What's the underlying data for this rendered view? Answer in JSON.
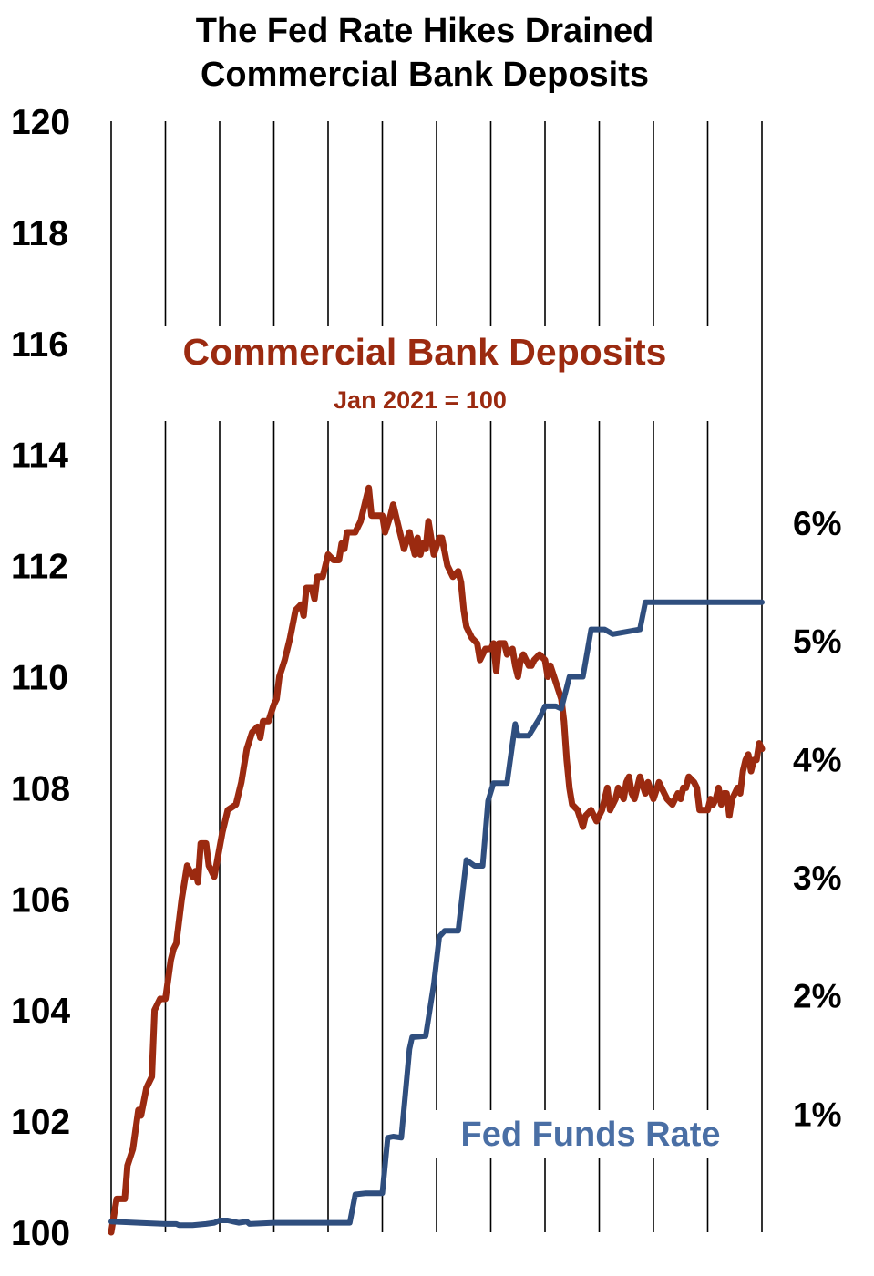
{
  "chart_data": {
    "type": "line",
    "title_lines": [
      "The Fed Rate Hikes Drained",
      "Commercial Bank Deposits"
    ],
    "y_left": {
      "ticks": [
        "100",
        "102",
        "104",
        "106",
        "108",
        "110",
        "112",
        "114",
        "116",
        "118",
        "120"
      ],
      "range": [
        100,
        120
      ]
    },
    "y_right": {
      "ticks": [
        "1%",
        "2%",
        "3%",
        "4%",
        "5%",
        "6%"
      ],
      "range_percent": [
        0,
        9.4
      ]
    },
    "x": {
      "range": [
        0,
        12
      ],
      "gridlines": 12,
      "labels": []
    },
    "grid": "vertical",
    "series": [
      {
        "name": "Commercial Bank Deposits",
        "subtitle": "Jan 2021 = 100",
        "axis": "left",
        "color": "#9b2a10",
        "points": [
          [
            0.0,
            100.0
          ],
          [
            0.1,
            100.6
          ],
          [
            0.25,
            100.6
          ],
          [
            0.3,
            101.2
          ],
          [
            0.4,
            101.5
          ],
          [
            0.5,
            102.2
          ],
          [
            0.55,
            102.1
          ],
          [
            0.65,
            102.6
          ],
          [
            0.75,
            102.8
          ],
          [
            0.8,
            104.0
          ],
          [
            0.9,
            104.2
          ],
          [
            1.0,
            104.2
          ],
          [
            1.1,
            104.9
          ],
          [
            1.15,
            105.1
          ],
          [
            1.2,
            105.2
          ],
          [
            1.3,
            106.0
          ],
          [
            1.4,
            106.6
          ],
          [
            1.5,
            106.4
          ],
          [
            1.55,
            106.5
          ],
          [
            1.6,
            106.3
          ],
          [
            1.65,
            107.0
          ],
          [
            1.75,
            107.0
          ],
          [
            1.8,
            106.6
          ],
          [
            1.9,
            106.4
          ],
          [
            2.05,
            107.2
          ],
          [
            2.15,
            107.6
          ],
          [
            2.3,
            107.7
          ],
          [
            2.4,
            108.1
          ],
          [
            2.5,
            108.7
          ],
          [
            2.6,
            109.0
          ],
          [
            2.7,
            109.1
          ],
          [
            2.75,
            108.9
          ],
          [
            2.8,
            109.2
          ],
          [
            2.9,
            109.2
          ],
          [
            3.0,
            109.5
          ],
          [
            3.05,
            109.6
          ],
          [
            3.1,
            110.0
          ],
          [
            3.2,
            110.3
          ],
          [
            3.3,
            110.7
          ],
          [
            3.4,
            111.2
          ],
          [
            3.5,
            111.3
          ],
          [
            3.55,
            111.1
          ],
          [
            3.6,
            111.6
          ],
          [
            3.7,
            111.6
          ],
          [
            3.75,
            111.4
          ],
          [
            3.8,
            111.8
          ],
          [
            3.9,
            111.8
          ],
          [
            4.0,
            112.2
          ],
          [
            4.1,
            112.1
          ],
          [
            4.2,
            112.1
          ],
          [
            4.25,
            112.4
          ],
          [
            4.3,
            112.3
          ],
          [
            4.35,
            112.6
          ],
          [
            4.5,
            112.6
          ],
          [
            4.6,
            112.8
          ],
          [
            4.7,
            113.2
          ],
          [
            4.75,
            113.4
          ],
          [
            4.8,
            112.9
          ],
          [
            5.0,
            112.9
          ],
          [
            5.05,
            112.6
          ],
          [
            5.15,
            112.9
          ],
          [
            5.2,
            113.1
          ],
          [
            5.3,
            112.7
          ],
          [
            5.4,
            112.3
          ],
          [
            5.5,
            112.6
          ],
          [
            5.6,
            112.2
          ],
          [
            5.65,
            112.5
          ],
          [
            5.7,
            112.2
          ],
          [
            5.75,
            112.4
          ],
          [
            5.8,
            112.3
          ],
          [
            5.85,
            112.8
          ],
          [
            5.95,
            112.2
          ],
          [
            6.05,
            112.5
          ],
          [
            6.1,
            112.5
          ],
          [
            6.2,
            112.0
          ],
          [
            6.3,
            111.8
          ],
          [
            6.4,
            111.9
          ],
          [
            6.45,
            111.7
          ],
          [
            6.5,
            111.2
          ],
          [
            6.55,
            110.9
          ],
          [
            6.65,
            110.7
          ],
          [
            6.75,
            110.6
          ],
          [
            6.8,
            110.3
          ],
          [
            6.9,
            110.5
          ],
          [
            6.95,
            110.5
          ],
          [
            7.0,
            110.5
          ],
          [
            7.05,
            110.6
          ],
          [
            7.1,
            110.1
          ],
          [
            7.15,
            110.6
          ],
          [
            7.25,
            110.6
          ],
          [
            7.3,
            110.4
          ],
          [
            7.4,
            110.5
          ],
          [
            7.45,
            110.2
          ],
          [
            7.5,
            110.0
          ],
          [
            7.55,
            110.3
          ],
          [
            7.6,
            110.4
          ],
          [
            7.7,
            110.2
          ],
          [
            7.75,
            110.2
          ],
          [
            7.8,
            110.3
          ],
          [
            7.9,
            110.4
          ],
          [
            8.0,
            110.3
          ],
          [
            8.05,
            110.0
          ],
          [
            8.1,
            110.2
          ],
          [
            8.2,
            109.9
          ],
          [
            8.3,
            109.6
          ],
          [
            8.35,
            109.2
          ],
          [
            8.4,
            108.5
          ],
          [
            8.45,
            108.0
          ],
          [
            8.5,
            107.7
          ],
          [
            8.6,
            107.6
          ],
          [
            8.7,
            107.3
          ],
          [
            8.75,
            107.5
          ],
          [
            8.85,
            107.6
          ],
          [
            8.95,
            107.4
          ],
          [
            9.05,
            107.6
          ],
          [
            9.15,
            108.0
          ],
          [
            9.2,
            107.6
          ],
          [
            9.3,
            107.8
          ],
          [
            9.35,
            108.0
          ],
          [
            9.45,
            107.8
          ],
          [
            9.5,
            108.1
          ],
          [
            9.55,
            108.2
          ],
          [
            9.6,
            107.9
          ],
          [
            9.65,
            107.8
          ],
          [
            9.75,
            108.2
          ],
          [
            9.85,
            107.9
          ],
          [
            9.9,
            108.1
          ],
          [
            10.0,
            107.8
          ],
          [
            10.1,
            108.1
          ],
          [
            10.15,
            108.0
          ],
          [
            10.2,
            107.9
          ],
          [
            10.25,
            107.8
          ],
          [
            10.35,
            107.7
          ],
          [
            10.4,
            107.8
          ],
          [
            10.45,
            107.9
          ],
          [
            10.5,
            107.8
          ],
          [
            10.55,
            108.0
          ],
          [
            10.6,
            108.0
          ],
          [
            10.65,
            108.2
          ],
          [
            10.75,
            108.1
          ],
          [
            10.8,
            108.0
          ],
          [
            10.85,
            107.6
          ],
          [
            11.0,
            107.6
          ],
          [
            11.05,
            107.8
          ],
          [
            11.1,
            107.7
          ],
          [
            11.15,
            107.8
          ],
          [
            11.2,
            108.0
          ],
          [
            11.25,
            107.7
          ],
          [
            11.3,
            107.9
          ],
          [
            11.35,
            107.9
          ],
          [
            11.4,
            107.5
          ],
          [
            11.45,
            107.8
          ],
          [
            11.5,
            107.9
          ],
          [
            11.55,
            108.0
          ],
          [
            11.6,
            107.9
          ],
          [
            11.65,
            108.3
          ],
          [
            11.7,
            108.5
          ],
          [
            11.75,
            108.6
          ],
          [
            11.8,
            108.3
          ],
          [
            11.85,
            108.5
          ],
          [
            11.9,
            108.5
          ],
          [
            11.95,
            108.8
          ],
          [
            12.0,
            108.7
          ]
        ]
      },
      {
        "name": "Fed Funds Rate",
        "axis": "right",
        "color": "#2f4e7e",
        "points": [
          [
            0.0,
            0.09
          ],
          [
            0.5,
            0.08
          ],
          [
            1.0,
            0.07
          ],
          [
            1.2,
            0.07
          ],
          [
            1.25,
            0.06
          ],
          [
            1.5,
            0.06
          ],
          [
            1.75,
            0.07
          ],
          [
            1.9,
            0.08
          ],
          [
            2.0,
            0.1
          ],
          [
            2.15,
            0.1
          ],
          [
            2.35,
            0.08
          ],
          [
            2.5,
            0.09
          ],
          [
            2.55,
            0.07
          ],
          [
            3.0,
            0.08
          ],
          [
            3.5,
            0.08
          ],
          [
            4.0,
            0.08
          ],
          [
            4.4,
            0.08
          ],
          [
            4.5,
            0.32
          ],
          [
            4.7,
            0.33
          ],
          [
            4.85,
            0.33
          ],
          [
            5.0,
            0.33
          ],
          [
            5.1,
            0.8
          ],
          [
            5.2,
            0.81
          ],
          [
            5.35,
            0.8
          ],
          [
            5.5,
            1.55
          ],
          [
            5.55,
            1.65
          ],
          [
            5.8,
            1.66
          ],
          [
            5.95,
            2.1
          ],
          [
            6.05,
            2.5
          ],
          [
            6.15,
            2.55
          ],
          [
            6.4,
            2.55
          ],
          [
            6.55,
            3.15
          ],
          [
            6.7,
            3.1
          ],
          [
            6.85,
            3.1
          ],
          [
            6.95,
            3.65
          ],
          [
            7.05,
            3.8
          ],
          [
            7.3,
            3.8
          ],
          [
            7.45,
            4.3
          ],
          [
            7.5,
            4.2
          ],
          [
            7.7,
            4.2
          ],
          [
            7.9,
            4.35
          ],
          [
            8.0,
            4.45
          ],
          [
            8.2,
            4.45
          ],
          [
            8.3,
            4.43
          ],
          [
            8.45,
            4.7
          ],
          [
            8.7,
            4.7
          ],
          [
            8.85,
            5.1
          ],
          [
            9.1,
            5.1
          ],
          [
            9.25,
            5.06
          ],
          [
            9.5,
            5.08
          ],
          [
            9.75,
            5.1
          ],
          [
            9.85,
            5.33
          ],
          [
            10.0,
            5.33
          ],
          [
            10.5,
            5.33
          ],
          [
            11.0,
            5.33
          ],
          [
            11.5,
            5.33
          ],
          [
            12.0,
            5.33
          ]
        ]
      }
    ]
  }
}
